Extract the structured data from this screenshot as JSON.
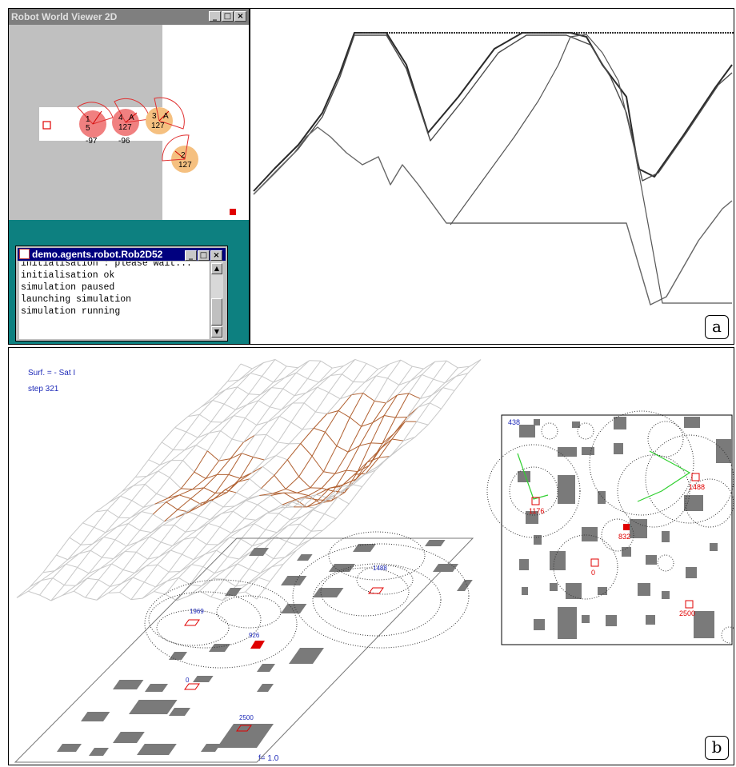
{
  "panel_a": {
    "tag": "a",
    "viewer": {
      "title": "Robot World Viewer 2D",
      "window_buttons": [
        "_",
        "□",
        "×"
      ],
      "robots": [
        {
          "label": "1",
          "value": "5",
          "heading": "-97",
          "color": "#f08080"
        },
        {
          "label": "4",
          "mode": "A",
          "value": "127",
          "heading": "-96",
          "color": "#f08080"
        },
        {
          "label": "3",
          "mode": "A",
          "value": "127",
          "heading": "",
          "color": "#f5c080"
        },
        {
          "label": "2",
          "mode": "",
          "value": "127",
          "heading": "",
          "color": "#f5c080"
        }
      ]
    },
    "console": {
      "title": "demo.agents.robot.Rob2D52",
      "lines": [
        "initialisation : please wait...",
        "initialisation ok",
        "simulation paused",
        "launching simulation",
        "simulation running"
      ]
    }
  },
  "panel_b": {
    "tag": "b",
    "surface_label": "Surf. = - Sat I",
    "step_label": "step 321",
    "f_label": "f= 1.0",
    "persp_labels": [
      "1969",
      "926",
      "1488",
      "0",
      "2500"
    ],
    "map": {
      "corner_label": "438",
      "labels": [
        {
          "text": "1176"
        },
        {
          "text": "1488"
        },
        {
          "text": "832"
        },
        {
          "text": "0"
        },
        {
          "text": "2500"
        }
      ]
    }
  },
  "colors": {
    "mesh_brown": "#b06030",
    "mesh_grey": "#c8c8c8",
    "obstacle": "#7a7a7a",
    "goal_red": "#e00000",
    "text_blue": "#1e2ab8",
    "link_green": "#30d030"
  }
}
